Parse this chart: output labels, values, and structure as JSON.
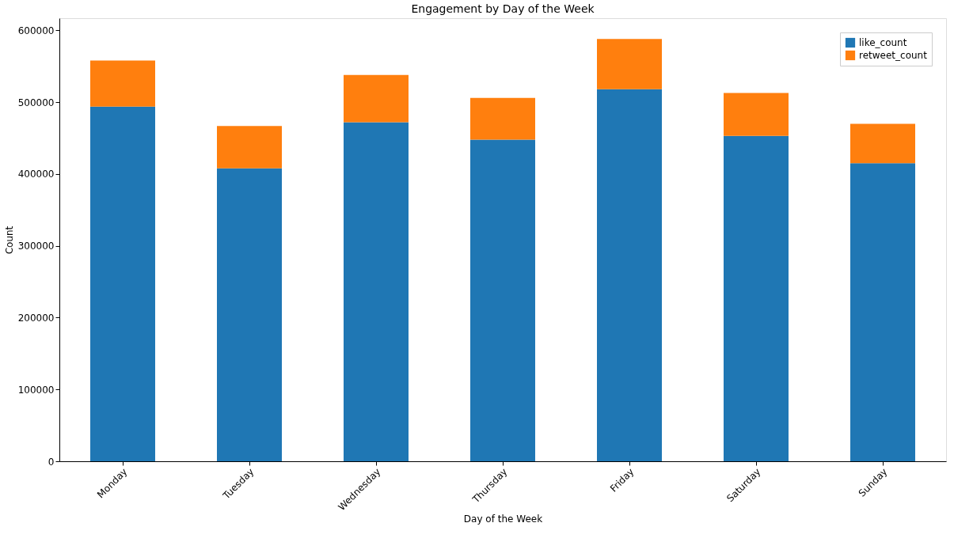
{
  "chart_data": {
    "type": "bar",
    "title": "Engagement by Day of the Week",
    "xlabel": "Day of the Week",
    "ylabel": "Count",
    "categories": [
      "Monday",
      "Tuesday",
      "Wednesday",
      "Thursday",
      "Friday",
      "Saturday",
      "Sunday"
    ],
    "series": [
      {
        "name": "like_count",
        "color": "#1f77b4",
        "values": [
          494000,
          408000,
          472000,
          448000,
          518000,
          453000,
          415000
        ]
      },
      {
        "name": "retweet_count",
        "color": "#ff7f0e",
        "values": [
          64000,
          59000,
          66000,
          58000,
          70000,
          60000,
          55000
        ]
      }
    ],
    "stacked": true,
    "ylim": [
      0,
      617000
    ],
    "yticks": [
      0,
      100000,
      200000,
      300000,
      400000,
      500000,
      600000
    ],
    "grid": false,
    "legend": "top right"
  }
}
